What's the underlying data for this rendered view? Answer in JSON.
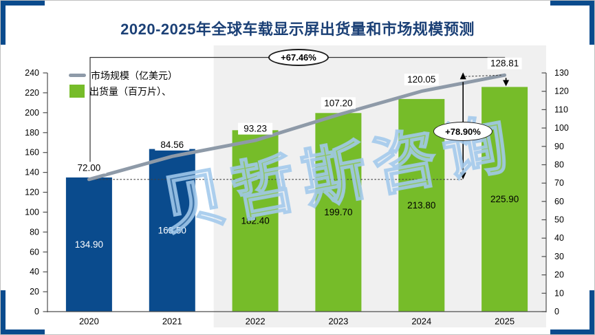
{
  "page": {
    "title": "2020-2025年全球车载显示屏出货量和市场规模预测"
  },
  "legend": {
    "items": [
      {
        "label": "市场规模（亿美元）",
        "marker": "line"
      },
      {
        "label": "出货量（百万片）、",
        "marker": "square"
      }
    ]
  },
  "watermark": "贝哲斯咨询",
  "colors": {
    "navy": "#0A4B8D",
    "green": "#76BC29",
    "line_gray": "#8E9AA8",
    "title_blue": "#1B4076",
    "forecast_bg": "#F0F0F0"
  },
  "chart_data": {
    "type": "combo-bar-line",
    "categories": [
      "2020",
      "2021",
      "2022",
      "2023",
      "2024",
      "2025"
    ],
    "series": [
      {
        "name": "出货量（百万片）",
        "type": "bar",
        "axis": "left",
        "values": [
          134.9,
          163.5,
          182.4,
          199.7,
          213.8,
          225.9
        ],
        "bar_colors": [
          "#0A4B8D",
          "#0A4B8D",
          "#76BC29",
          "#76BC29",
          "#76BC29",
          "#76BC29"
        ],
        "label_colors": [
          "#FFFFFF",
          "#FFFFFF",
          "#000000",
          "#000000",
          "#000000",
          "#000000"
        ]
      },
      {
        "name": "市场规模（亿美元）",
        "type": "line",
        "axis": "right",
        "values": [
          72.0,
          84.56,
          93.23,
          107.2,
          120.05,
          128.81
        ],
        "color": "#8E9AA8"
      }
    ],
    "left_axis": {
      "min": 0,
      "max": 240,
      "step": 20
    },
    "right_axis": {
      "min": 0,
      "max": 130,
      "step": 10
    },
    "value_label_decimals": 2,
    "forecast_start_category": "2022",
    "annotations": [
      {
        "id": "bars-growth",
        "label": "+67.46%"
      },
      {
        "id": "line-growth",
        "label": "+78.90%"
      }
    ],
    "grid": false,
    "legend_position": "top-left"
  }
}
